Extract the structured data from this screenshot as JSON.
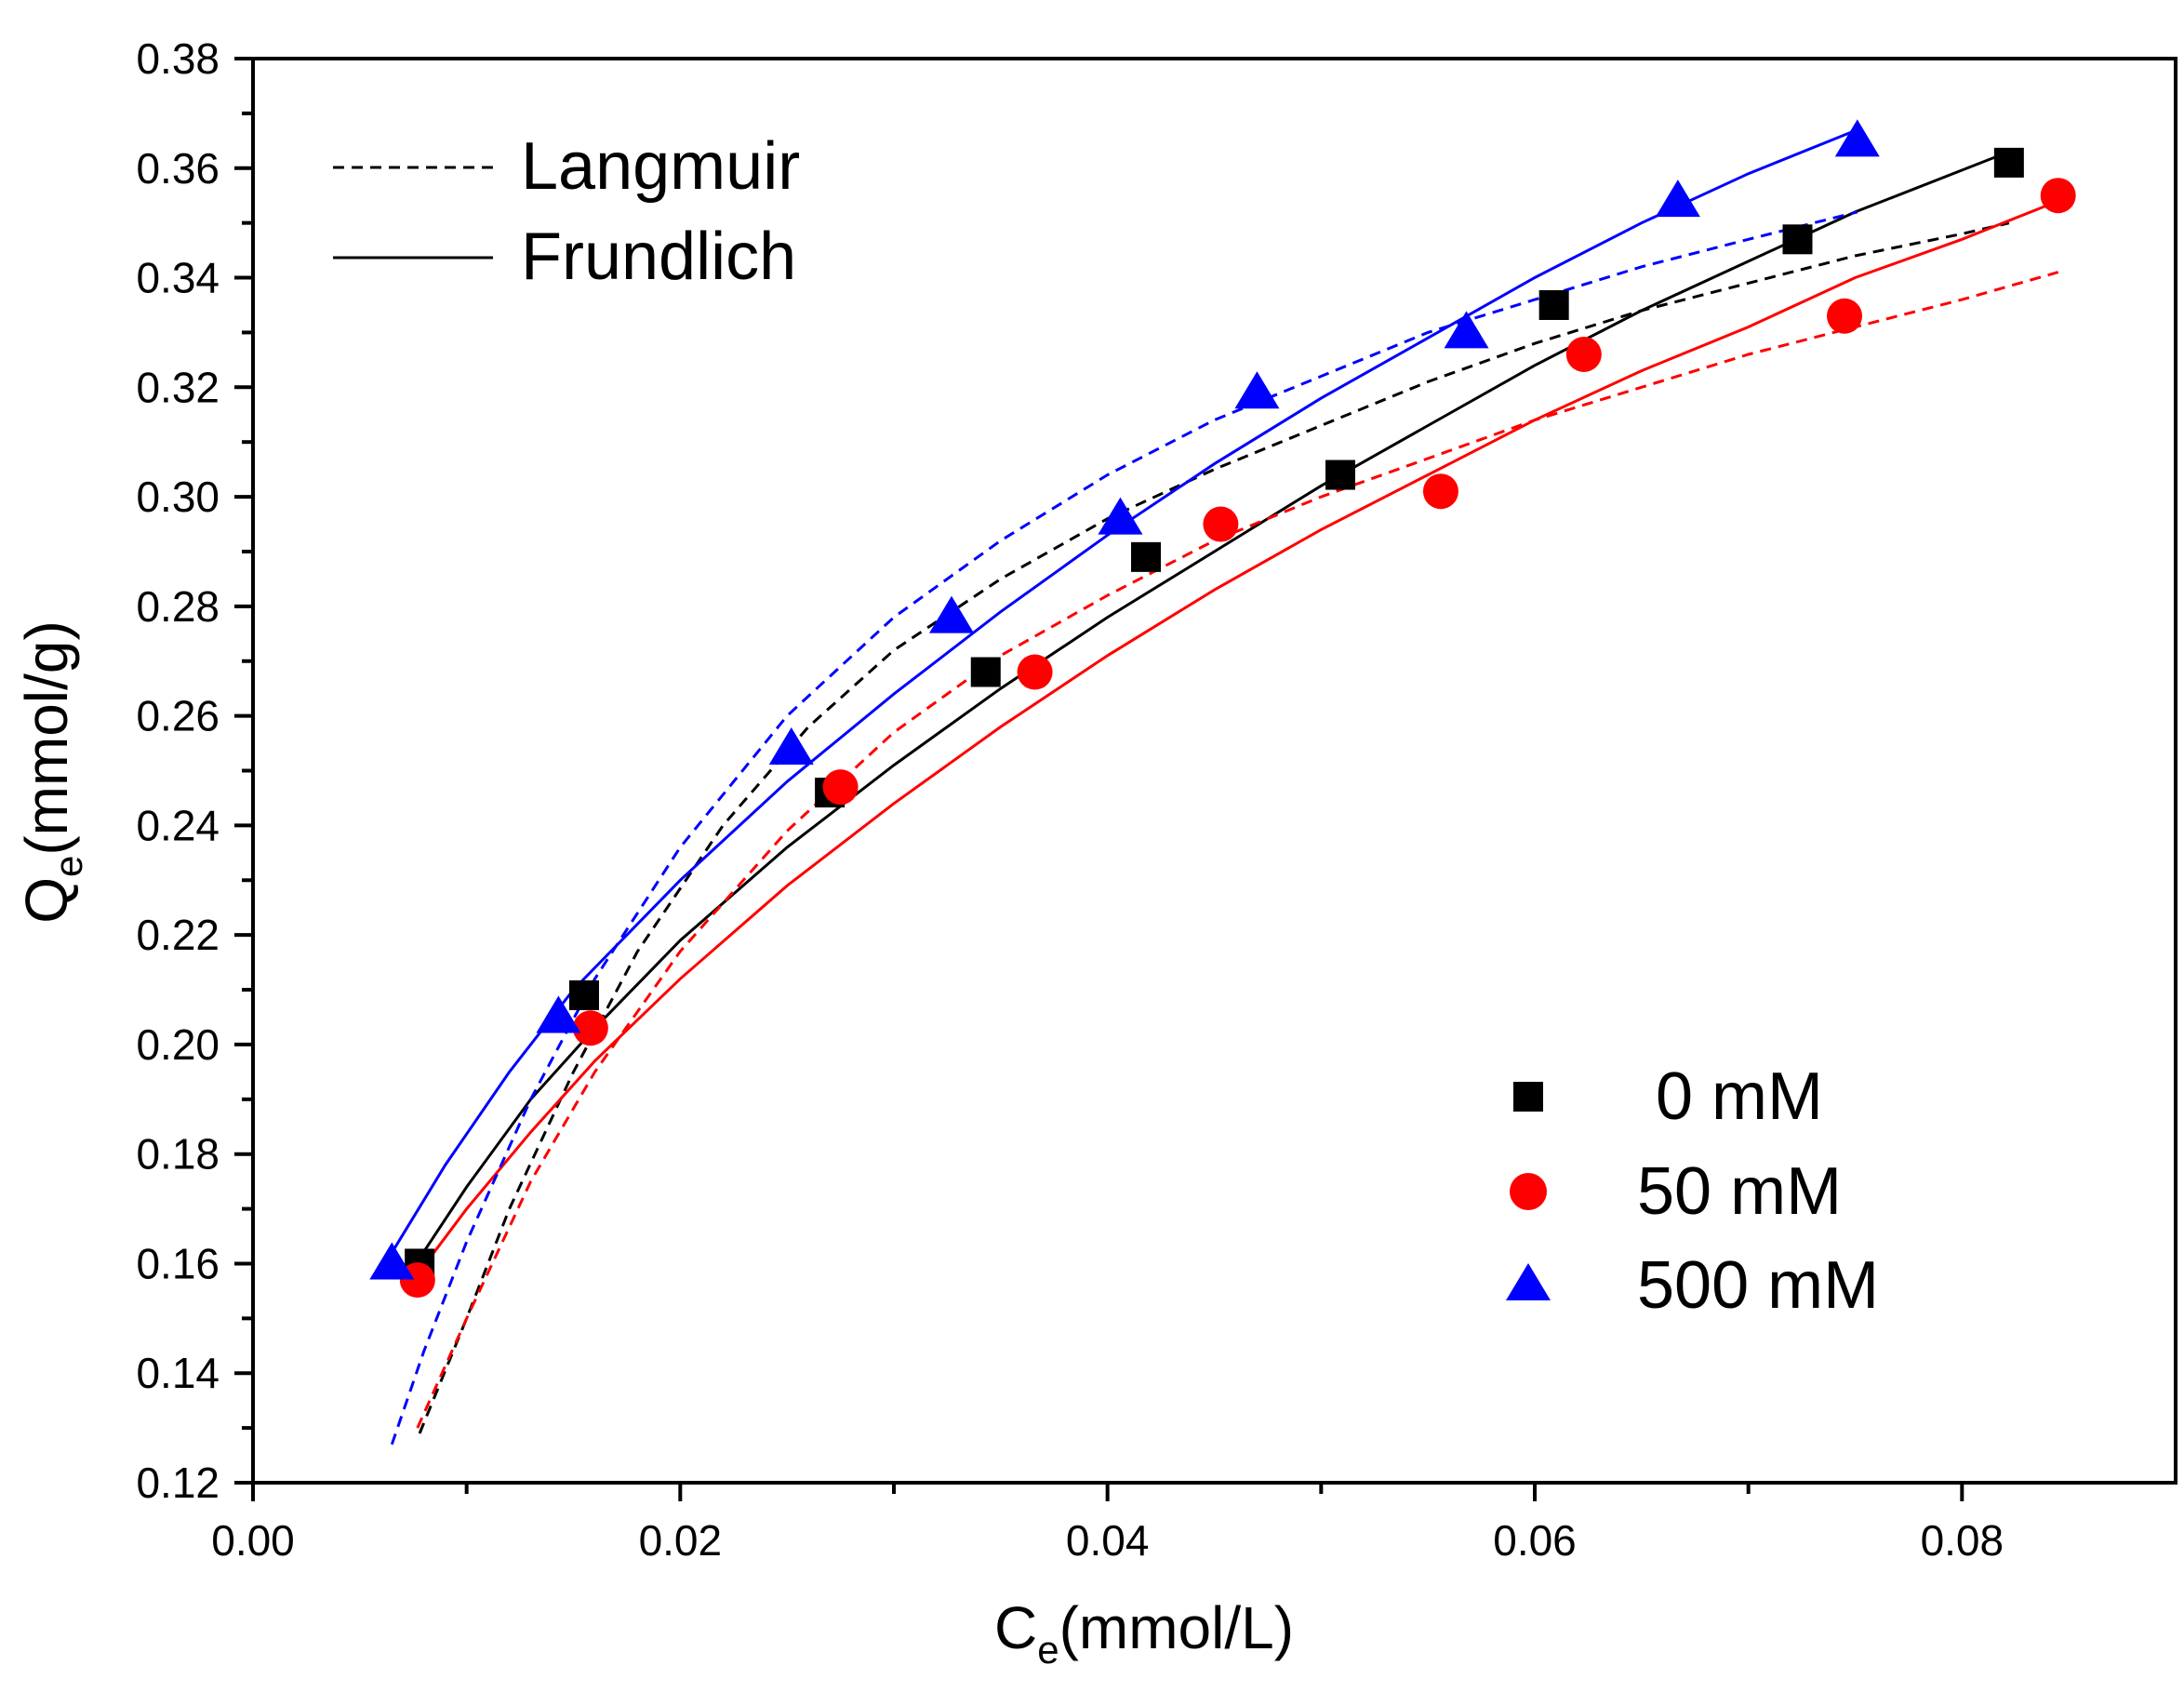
{
  "chart_data": {
    "type": "scatter",
    "title": "",
    "xlabel": {
      "main": "C",
      "sub": "e",
      "rest": "(mmol/L)"
    },
    "ylabel": {
      "main": "Q",
      "sub": "e",
      "rest": "(mmol/g)"
    },
    "xlim": [
      0,
      0.09
    ],
    "ylim": [
      0.12,
      0.38
    ],
    "x_ticks": [
      0.0,
      0.02,
      0.04,
      0.06,
      0.08
    ],
    "x_tick_labels": [
      "0.00",
      "0.02",
      "0.04",
      "0.06",
      "0.08"
    ],
    "y_ticks": [
      0.12,
      0.14,
      0.16,
      0.18,
      0.2,
      0.22,
      0.24,
      0.26,
      0.28,
      0.3,
      0.32,
      0.34,
      0.36,
      0.38
    ],
    "y_tick_labels": [
      "0.12",
      "0.14",
      "0.16",
      "0.18",
      "0.20",
      "0.22",
      "0.24",
      "0.26",
      "0.28",
      "0.30",
      "0.32",
      "0.34",
      "0.36",
      "0.38"
    ],
    "grid": false,
    "line_legend": [
      {
        "label": "Langmuir",
        "style": "dashed"
      },
      {
        "label": "Frundlich",
        "style": "solid"
      }
    ],
    "series": [
      {
        "name": "0 mM",
        "marker": "square",
        "color": "#000000",
        "points": [
          [
            0.0078,
            0.16
          ],
          [
            0.0155,
            0.209
          ],
          [
            0.027,
            0.246
          ],
          [
            0.0343,
            0.268
          ],
          [
            0.0418,
            0.289
          ],
          [
            0.0509,
            0.304
          ],
          [
            0.0609,
            0.335
          ],
          [
            0.0723,
            0.347
          ],
          [
            0.0822,
            0.361
          ]
        ],
        "langmuir_fit": [
          [
            0.0078,
            0.129
          ],
          [
            0.01,
            0.15
          ],
          [
            0.012,
            0.17
          ],
          [
            0.015,
            0.195
          ],
          [
            0.018,
            0.217
          ],
          [
            0.022,
            0.24
          ],
          [
            0.026,
            0.258
          ],
          [
            0.03,
            0.272
          ],
          [
            0.035,
            0.285
          ],
          [
            0.04,
            0.296
          ],
          [
            0.045,
            0.305
          ],
          [
            0.05,
            0.313
          ],
          [
            0.055,
            0.321
          ],
          [
            0.06,
            0.328
          ],
          [
            0.065,
            0.334
          ],
          [
            0.07,
            0.339
          ],
          [
            0.075,
            0.344
          ],
          [
            0.08,
            0.348
          ],
          [
            0.0822,
            0.35
          ]
        ],
        "freundlich_fit": [
          [
            0.0078,
            0.161
          ],
          [
            0.01,
            0.174
          ],
          [
            0.013,
            0.19
          ],
          [
            0.016,
            0.203
          ],
          [
            0.02,
            0.219
          ],
          [
            0.025,
            0.236
          ],
          [
            0.03,
            0.251
          ],
          [
            0.035,
            0.265
          ],
          [
            0.04,
            0.278
          ],
          [
            0.045,
            0.29
          ],
          [
            0.05,
            0.302
          ],
          [
            0.055,
            0.313
          ],
          [
            0.06,
            0.324
          ],
          [
            0.065,
            0.334
          ],
          [
            0.07,
            0.343
          ],
          [
            0.075,
            0.352
          ],
          [
            0.0822,
            0.363
          ]
        ]
      },
      {
        "name": "50 mM",
        "marker": "circle",
        "color": "#ff0000",
        "points": [
          [
            0.0077,
            0.157
          ],
          [
            0.0158,
            0.203
          ],
          [
            0.0275,
            0.247
          ],
          [
            0.0366,
            0.268
          ],
          [
            0.0453,
            0.295
          ],
          [
            0.0556,
            0.301
          ],
          [
            0.0623,
            0.326
          ],
          [
            0.0745,
            0.333
          ],
          [
            0.0845,
            0.355
          ]
        ],
        "langmuir_fit": [
          [
            0.0077,
            0.13
          ],
          [
            0.01,
            0.15
          ],
          [
            0.013,
            0.175
          ],
          [
            0.016,
            0.195
          ],
          [
            0.02,
            0.217
          ],
          [
            0.025,
            0.239
          ],
          [
            0.03,
            0.257
          ],
          [
            0.035,
            0.271
          ],
          [
            0.04,
            0.282
          ],
          [
            0.045,
            0.292
          ],
          [
            0.05,
            0.3
          ],
          [
            0.055,
            0.307
          ],
          [
            0.06,
            0.314
          ],
          [
            0.065,
            0.32
          ],
          [
            0.07,
            0.326
          ],
          [
            0.075,
            0.331
          ],
          [
            0.08,
            0.336
          ],
          [
            0.0845,
            0.341
          ]
        ],
        "freundlich_fit": [
          [
            0.0077,
            0.158
          ],
          [
            0.01,
            0.17
          ],
          [
            0.013,
            0.184
          ],
          [
            0.016,
            0.197
          ],
          [
            0.02,
            0.212
          ],
          [
            0.025,
            0.229
          ],
          [
            0.03,
            0.244
          ],
          [
            0.035,
            0.258
          ],
          [
            0.04,
            0.271
          ],
          [
            0.045,
            0.283
          ],
          [
            0.05,
            0.294
          ],
          [
            0.055,
            0.304
          ],
          [
            0.06,
            0.314
          ],
          [
            0.065,
            0.323
          ],
          [
            0.07,
            0.331
          ],
          [
            0.075,
            0.34
          ],
          [
            0.08,
            0.347
          ],
          [
            0.0845,
            0.354
          ]
        ]
      },
      {
        "name": "500 mM",
        "marker": "triangle",
        "color": "#0000ff",
        "points": [
          [
            0.0065,
            0.16
          ],
          [
            0.0143,
            0.205
          ],
          [
            0.0252,
            0.254
          ],
          [
            0.0327,
            0.278
          ],
          [
            0.0406,
            0.296
          ],
          [
            0.047,
            0.319
          ],
          [
            0.0568,
            0.33
          ],
          [
            0.0667,
            0.354
          ],
          [
            0.0751,
            0.365
          ]
        ],
        "langmuir_fit": [
          [
            0.0065,
            0.127
          ],
          [
            0.008,
            0.144
          ],
          [
            0.01,
            0.164
          ],
          [
            0.013,
            0.19
          ],
          [
            0.016,
            0.212
          ],
          [
            0.02,
            0.236
          ],
          [
            0.025,
            0.26
          ],
          [
            0.03,
            0.278
          ],
          [
            0.035,
            0.292
          ],
          [
            0.04,
            0.304
          ],
          [
            0.045,
            0.314
          ],
          [
            0.05,
            0.322
          ],
          [
            0.055,
            0.33
          ],
          [
            0.06,
            0.336
          ],
          [
            0.065,
            0.342
          ],
          [
            0.07,
            0.347
          ],
          [
            0.0751,
            0.352
          ]
        ],
        "freundlich_fit": [
          [
            0.0065,
            0.162
          ],
          [
            0.009,
            0.178
          ],
          [
            0.012,
            0.195
          ],
          [
            0.015,
            0.21
          ],
          [
            0.02,
            0.23
          ],
          [
            0.025,
            0.248
          ],
          [
            0.03,
            0.264
          ],
          [
            0.035,
            0.279
          ],
          [
            0.04,
            0.293
          ],
          [
            0.045,
            0.306
          ],
          [
            0.05,
            0.318
          ],
          [
            0.055,
            0.329
          ],
          [
            0.06,
            0.34
          ],
          [
            0.065,
            0.35
          ],
          [
            0.07,
            0.359
          ],
          [
            0.0751,
            0.367
          ]
        ]
      }
    ]
  }
}
